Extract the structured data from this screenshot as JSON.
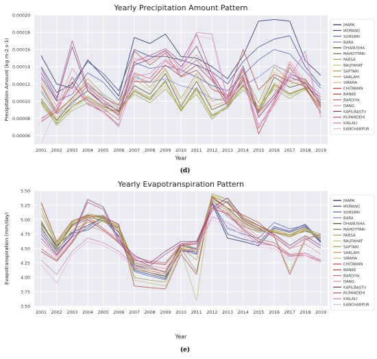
{
  "captions": {
    "top": "(d)",
    "bottom": "(e)"
  },
  "colors": {
    "plot_bg": "#eaeaf2",
    "grid": "#ffffff",
    "series": [
      "#2a2d6e",
      "#3f4a8f",
      "#5b6bb1",
      "#7f8fcb",
      "#545b2e",
      "#6d7b3a",
      "#9aa85a",
      "#bfc67a",
      "#b2a24e",
      "#c99f3f",
      "#e0bc7a",
      "#b5534a",
      "#b0464b",
      "#c96a6e",
      "#e39a9f",
      "#8a3f7c",
      "#b05599",
      "#d485c2",
      "#eab7e1"
    ]
  },
  "chart_data": [
    {
      "type": "line",
      "title": "Yearly Precipitation Amount Pattern",
      "xlabel": "Year",
      "ylabel": "Precipitation Amount (kg m-2 s-1)",
      "ylim": [
        5e-05,
        0.0002
      ],
      "yticks": [
        "0.00006",
        "0.00008",
        "0.00010",
        "0.00012",
        "0.00014",
        "0.00016",
        "0.00018",
        "0.00020"
      ],
      "ytick_values": [
        6e-05,
        8e-05,
        0.0001,
        0.00012,
        0.00014,
        0.00016,
        0.00018,
        0.0002
      ],
      "legend_position": "right",
      "x": [
        "2001",
        "2002",
        "2003",
        "2004",
        "2005",
        "2006",
        "2007",
        "2008",
        "2009",
        "2010",
        "2011",
        "2012",
        "2013",
        "2014",
        "2015",
        "2016",
        "2017",
        "2018",
        "2019"
      ],
      "series": [
        {
          "name": "JHAPA",
          "values": [
            0.000153,
            0.00012,
            0.000115,
            0.000148,
            0.000128,
            0.000106,
            0.000174,
            0.000167,
            0.000178,
            0.000152,
            0.00015,
            0.00014,
            0.000126,
            0.000153,
            0.000193,
            0.000195,
            0.000193,
            0.000147,
            0.00013
          ]
        },
        {
          "name": "MORANG",
          "values": [
            0.00014,
            0.00011,
            0.00012,
            0.000146,
            0.000132,
            0.000112,
            0.00016,
            0.000152,
            0.000152,
            0.000148,
            0.000142,
            0.000134,
            0.00012,
            0.000146,
            0.000163,
            0.000172,
            0.000176,
            0.00014,
            0.000118
          ]
        },
        {
          "name": "SUNSARI",
          "values": [
            0.000128,
            0.0001,
            0.000108,
            0.000133,
            0.000122,
            0.000101,
            0.000145,
            0.000138,
            0.000141,
            0.000136,
            0.000128,
            0.000118,
            0.000112,
            0.00013,
            0.000148,
            0.00016,
            0.000155,
            0.000135,
            0.000115
          ]
        },
        {
          "name": "BARA",
          "values": [
            0.000112,
            8.5e-05,
            9.6e-05,
            0.000118,
            0.000106,
            9.2e-05,
            0.000128,
            0.000122,
            0.000126,
            0.000118,
            0.000113,
            0.000103,
            0.0001,
            0.000118,
            0.000128,
            0.000142,
            0.000133,
            0.000122,
            0.000108
          ]
        },
        {
          "name": "DHANUSHA",
          "values": [
            0.000103,
            7.8e-05,
            9.9e-05,
            0.000112,
            9.8e-05,
            8.9e-05,
            0.000118,
            0.000108,
            0.000132,
            9.4e-05,
            0.000123,
            9e-05,
            9.8e-05,
            0.000124,
            8.9e-05,
            0.000128,
            0.000116,
            0.000121,
            9.5e-05
          ]
        },
        {
          "name": "MAHOTTARI",
          "values": [
            0.0001,
            7.4e-05,
            9.4e-05,
            0.000104,
            9.3e-05,
            8.8e-05,
            0.000112,
            0.000102,
            0.000124,
            8.9e-05,
            0.000116,
            8.3e-05,
            9.2e-05,
            0.000118,
            8.6e-05,
            0.000119,
            0.000108,
            0.000115,
            9.2e-05
          ]
        },
        {
          "name": "PARSA",
          "values": [
            9.8e-05,
            7.2e-05,
            8.9e-05,
            9.8e-05,
            8.8e-05,
            9.1e-05,
            0.000108,
            9.8e-05,
            0.000114,
            9.2e-05,
            0.000108,
            7.9e-05,
            9.5e-05,
            0.000113,
            9.4e-05,
            0.000114,
            0.000103,
            0.000114,
            9.4e-05
          ]
        },
        {
          "name": "RAUTAHAT",
          "values": [
            9.5e-05,
            7.5e-05,
            9.2e-05,
            0.000102,
            9.1e-05,
            8.6e-05,
            0.000111,
            0.000101,
            0.000118,
            8.8e-05,
            0.000112,
            8.1e-05,
            9.4e-05,
            0.000117,
            8.8e-05,
            0.000117,
            0.000106,
            0.000113,
            9.3e-05
          ]
        },
        {
          "name": "SAPTARI",
          "values": [
            0.000121,
            8.8e-05,
            0.000103,
            0.000126,
            0.000108,
            9.6e-05,
            0.000132,
            0.000116,
            0.000138,
            0.000103,
            0.000132,
            0.0001,
            0.000104,
            0.000134,
            9.8e-05,
            0.00014,
            0.000124,
            0.000126,
            0.000101
          ]
        },
        {
          "name": "SARLAHI",
          "values": [
            9.9e-05,
            7.7e-05,
            9.4e-05,
            0.000106,
            9.4e-05,
            8.7e-05,
            0.000114,
            0.000104,
            0.000122,
            9e-05,
            0.000114,
            8.4e-05,
            9.4e-05,
            0.00012,
            8.7e-05,
            0.000121,
            0.000109,
            0.000116,
            9.3e-05
          ]
        },
        {
          "name": "SIRAHA",
          "values": [
            0.00011,
            8.1e-05,
            0.000101,
            0.000118,
            0.000101,
            9.1e-05,
            0.000126,
            0.000112,
            0.000136,
            9.8e-05,
            0.000128,
            9.4e-05,
            0.0001,
            0.000129,
            9.2e-05,
            0.000134,
            0.00012,
            0.000123,
            9.7e-05
          ]
        },
        {
          "name": "CHITAWAN",
          "values": [
            0.000118,
            8.6e-05,
            0.000104,
            0.000121,
            0.000104,
            9.5e-05,
            0.000158,
            0.000142,
            0.000156,
            0.000128,
            0.000136,
            0.000114,
            0.000106,
            0.00016,
            0.000113,
            0.000131,
            0.000123,
            0.000117,
            0.000105
          ]
        },
        {
          "name": "BANKE",
          "values": [
            7.6e-05,
            8.8e-05,
            0.000122,
            9.6e-05,
            8.8e-05,
            7.2e-05,
            0.000123,
            0.000122,
            0.000142,
            0.000129,
            0.000142,
            0.000124,
            9.5e-05,
            0.000127,
            6.2e-05,
            9.8e-05,
            0.000139,
            0.000116,
            8.6e-05
          ]
        },
        {
          "name": "BARDIYA",
          "values": [
            8e-05,
            9e-05,
            0.000128,
            0.000101,
            9.1e-05,
            7.8e-05,
            0.000133,
            0.000126,
            0.000147,
            0.000133,
            0.000148,
            0.000128,
            9.8e-05,
            0.000129,
            6.8e-05,
            0.000101,
            0.000143,
            0.000118,
            8.8e-05
          ]
        },
        {
          "name": "DANG",
          "values": [
            0.000126,
            9.4e-05,
            0.000138,
            0.000114,
            9.8e-05,
            8.2e-05,
            0.00015,
            0.000146,
            0.000158,
            0.000136,
            0.000154,
            0.000134,
            0.000102,
            0.000136,
            8.3e-05,
            0.000108,
            0.000146,
            0.000123,
            9.6e-05
          ]
        },
        {
          "name": "KAPILBASTU",
          "values": [
            0.000133,
            0.000101,
            0.000163,
            0.000112,
            9.6e-05,
            8.4e-05,
            0.000142,
            0.000149,
            0.000159,
            0.00014,
            0.000164,
            0.000126,
            0.000101,
            0.000138,
            8.1e-05,
            0.000104,
            0.000128,
            0.000121,
            9.8e-05
          ]
        },
        {
          "name": "RUPANDEHI",
          "values": [
            0.000138,
            0.000104,
            0.00017,
            0.000116,
            0.000101,
            8.8e-05,
            0.000146,
            0.000153,
            0.000161,
            0.000146,
            0.000178,
            0.000131,
            0.000104,
            0.000141,
            8.7e-05,
            0.000107,
            0.000131,
            0.000125,
            0.000101
          ]
        },
        {
          "name": "KAILALI",
          "values": [
            7.8e-05,
            9.4e-05,
            0.000118,
            0.0001,
            8.8e-05,
            7e-05,
            0.000129,
            0.000132,
            0.000149,
            0.000136,
            0.00018,
            0.000178,
            0.000102,
            0.000126,
            7.2e-05,
            9.6e-05,
            0.000128,
            0.000158,
            8.2e-05
          ]
        },
        {
          "name": "KANCHANPUR",
          "values": [
            5.1e-05,
            9.2e-05,
            0.000114,
            9.7e-05,
            8.6e-05,
            7.1e-05,
            0.000124,
            0.000128,
            0.000146,
            0.000132,
            0.000176,
            0.000172,
            0.0001,
            0.000122,
            7e-05,
            9.4e-05,
            0.000125,
            0.000152,
            8e-05
          ]
        }
      ]
    },
    {
      "type": "line",
      "title": "Yearly Evapotranspiration Pattern",
      "xlabel": "Year",
      "ylabel": "Evapotranspiration (mm/day)",
      "ylim": [
        3.5,
        5.5
      ],
      "yticks": [
        "3.50",
        "3.75",
        "4.00",
        "4.25",
        "4.50",
        "4.75",
        "5.00",
        "5.25",
        "5.50"
      ],
      "ytick_values": [
        3.5,
        3.75,
        4.0,
        4.25,
        4.5,
        4.75,
        5.0,
        5.25,
        5.5
      ],
      "legend_position": "right",
      "x": [
        "2001",
        "2002",
        "2003",
        "2004",
        "2005",
        "2006",
        "2007",
        "2008",
        "2009",
        "2010",
        "2011",
        "2012",
        "2013",
        "2014",
        "2015",
        "2016",
        "2017",
        "2018",
        "2019"
      ],
      "series": [
        {
          "name": "JHAPA",
          "values": [
            4.92,
            4.55,
            4.78,
            4.9,
            5.04,
            4.78,
            4.16,
            4.08,
            4.02,
            4.45,
            4.45,
            5.28,
            4.68,
            4.62,
            4.55,
            4.85,
            4.78,
            4.88,
            4.6
          ]
        },
        {
          "name": "MORANG",
          "values": [
            4.85,
            4.48,
            4.76,
            4.82,
            5.0,
            4.72,
            4.12,
            4.05,
            3.98,
            4.48,
            4.4,
            5.32,
            4.75,
            4.66,
            4.6,
            4.88,
            4.8,
            4.92,
            4.63
          ]
        },
        {
          "name": "SUNSARI",
          "values": [
            4.8,
            4.44,
            4.7,
            4.86,
            5.05,
            4.7,
            4.1,
            4.02,
            3.96,
            4.5,
            4.42,
            5.3,
            4.85,
            4.75,
            4.68,
            4.95,
            4.84,
            4.9,
            4.62
          ]
        },
        {
          "name": "BARA",
          "values": [
            4.9,
            4.6,
            4.88,
            5.02,
            5.08,
            4.82,
            4.2,
            4.12,
            4.05,
            4.55,
            4.5,
            5.35,
            5.05,
            4.88,
            4.8,
            4.8,
            4.72,
            4.85,
            4.7
          ]
        },
        {
          "name": "DHANUSHA",
          "values": [
            4.95,
            4.52,
            4.9,
            5.05,
            4.98,
            4.85,
            4.22,
            4.15,
            4.1,
            4.55,
            4.48,
            5.38,
            5.2,
            4.95,
            4.82,
            4.78,
            4.7,
            4.82,
            4.68
          ]
        },
        {
          "name": "MAHOTTARI",
          "values": [
            4.98,
            4.5,
            4.92,
            5.08,
            5.02,
            4.88,
            4.25,
            4.18,
            4.08,
            4.58,
            4.5,
            5.4,
            5.3,
            5.0,
            4.85,
            4.8,
            4.72,
            4.8,
            4.72
          ]
        },
        {
          "name": "PARSA",
          "values": [
            5.2,
            4.55,
            4.95,
            5.1,
            5.06,
            4.9,
            4.0,
            3.95,
            3.92,
            4.5,
            4.1,
            5.45,
            5.35,
            5.05,
            4.9,
            4.78,
            4.74,
            4.84,
            4.75
          ]
        },
        {
          "name": "RAUTAHAT",
          "values": [
            5.28,
            4.6,
            4.97,
            5.05,
            5.0,
            4.86,
            3.95,
            3.9,
            3.85,
            4.45,
            3.6,
            5.42,
            5.35,
            5.02,
            4.88,
            4.72,
            4.1,
            4.7,
            4.72
          ]
        },
        {
          "name": "SAPTARI",
          "values": [
            4.88,
            4.45,
            4.82,
            4.95,
            4.98,
            4.8,
            4.14,
            4.08,
            4.0,
            4.5,
            4.45,
            5.33,
            5.15,
            4.9,
            4.78,
            4.82,
            4.74,
            4.86,
            4.66
          ]
        },
        {
          "name": "SARLAHI",
          "values": [
            5.1,
            4.58,
            4.93,
            5.06,
            5.04,
            4.87,
            4.18,
            4.12,
            4.05,
            4.52,
            4.3,
            5.41,
            5.28,
            5.0,
            4.86,
            4.79,
            4.7,
            4.82,
            4.72
          ]
        },
        {
          "name": "SIRAHA",
          "values": [
            4.93,
            4.5,
            4.88,
            5.0,
            4.96,
            4.83,
            4.18,
            4.12,
            4.06,
            4.52,
            4.46,
            5.36,
            5.18,
            4.93,
            4.8,
            4.8,
            4.72,
            4.84,
            4.67
          ]
        },
        {
          "name": "CHITAWAN",
          "values": [
            5.3,
            4.62,
            4.98,
            5.07,
            5.05,
            4.92,
            3.85,
            3.82,
            3.8,
            4.4,
            4.05,
            5.4,
            5.2,
            5.08,
            4.95,
            4.72,
            4.05,
            4.65,
            4.75
          ]
        },
        {
          "name": "BANKE",
          "values": [
            4.45,
            4.28,
            4.6,
            5.0,
            4.82,
            4.6,
            4.3,
            4.25,
            4.22,
            4.55,
            4.58,
            5.2,
            5.1,
            4.82,
            4.62,
            4.55,
            4.38,
            4.38,
            4.28
          ]
        },
        {
          "name": "BARDIYA",
          "values": [
            4.5,
            4.3,
            4.62,
            5.05,
            4.85,
            4.62,
            4.35,
            4.28,
            4.25,
            4.58,
            4.62,
            5.25,
            5.12,
            4.85,
            4.66,
            4.6,
            4.4,
            4.42,
            4.3
          ]
        },
        {
          "name": "DANG",
          "values": [
            4.62,
            4.35,
            4.65,
            4.9,
            4.8,
            4.7,
            4.28,
            4.2,
            4.15,
            4.5,
            4.6,
            5.3,
            5.08,
            4.92,
            4.7,
            4.75,
            4.5,
            4.58,
            4.4
          ]
        },
        {
          "name": "KAPILBASTU",
          "values": [
            4.75,
            4.4,
            4.72,
            5.35,
            5.22,
            4.65,
            4.38,
            4.25,
            4.45,
            4.62,
            4.62,
            5.2,
            5.38,
            5.02,
            4.9,
            4.75,
            4.55,
            4.72,
            4.55
          ]
        },
        {
          "name": "RUPANDEHI",
          "values": [
            4.68,
            4.38,
            4.7,
            5.3,
            5.18,
            4.6,
            4.32,
            4.2,
            4.4,
            4.58,
            4.58,
            5.15,
            5.32,
            4.98,
            4.85,
            4.7,
            4.5,
            4.68,
            4.5
          ]
        },
        {
          "name": "KAILALI",
          "values": [
            4.3,
            4.05,
            4.45,
            4.68,
            4.6,
            4.45,
            4.2,
            4.15,
            4.1,
            4.45,
            4.5,
            5.05,
            4.95,
            4.78,
            4.58,
            4.55,
            4.35,
            4.42,
            4.3
          ]
        },
        {
          "name": "KANCHANPUR",
          "values": [
            4.22,
            3.9,
            4.4,
            4.62,
            4.55,
            4.4,
            4.15,
            4.1,
            4.05,
            4.4,
            4.45,
            5.0,
            4.9,
            4.72,
            4.52,
            4.5,
            4.3,
            4.38,
            4.25
          ]
        }
      ]
    }
  ]
}
